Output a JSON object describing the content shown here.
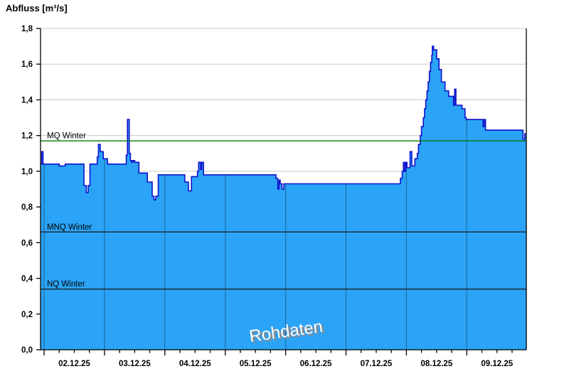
{
  "title": "Abfluss [m³/s]",
  "watermark": "Rohdaten",
  "colors": {
    "area_fill": "#2ba3f7",
    "area_stroke": "#0f12cc",
    "day_grid_on_area": "#1e6fa8",
    "horizontal_grid": "#c9c9c9",
    "axis_line": "#000000",
    "mq_line": "#007b00",
    "mnq_nq_line": "#1a1a1a",
    "tick_label": "#000000",
    "watermark_fill": "#ffffff",
    "watermark_shadow": "#8a8a8a"
  },
  "chart_data": {
    "type": "area",
    "title": "Abfluss [m³/s]",
    "ylabel": "Abfluss [m³/s]",
    "xlabel": "",
    "ylim": [
      0,
      1.8
    ],
    "ytick_step": 0.2,
    "y_tick_labels": [
      "0,0",
      "0,2",
      "0,4",
      "0,6",
      "0,8",
      "1,0",
      "1,2",
      "1,4",
      "1,6",
      "1,8"
    ],
    "x_tick_labels": [
      "02.12.25",
      "03.12.25",
      "04.12.25",
      "05.12.25",
      "06.12.25",
      "07.12.25",
      "08.12.25",
      "09.12.25"
    ],
    "x_minor_tick_days": 0.25,
    "x_visible_day_range": [
      -0.059,
      7.986
    ],
    "grid": true,
    "legend": false,
    "watermark": "Rohdaten",
    "reference_lines": [
      {
        "label": "MQ Winter",
        "value": 1.17,
        "color": "#007b00"
      },
      {
        "label": "MNQ Winter",
        "value": 0.66,
        "color": "#1a1a1a"
      },
      {
        "label": "NQ Winter",
        "value": 0.34,
        "color": "#1a1a1a"
      }
    ],
    "series": [
      {
        "name": "Abfluss Rohdaten",
        "unit": "m³/s",
        "step_mode": "step-after",
        "points_day_value": [
          [
            -0.059,
            1.04
          ],
          [
            -0.04,
            1.11
          ],
          [
            -0.018,
            1.04
          ],
          [
            0.25,
            1.03
          ],
          [
            0.35,
            1.04
          ],
          [
            0.66,
            0.92
          ],
          [
            0.7,
            0.88
          ],
          [
            0.73,
            0.92
          ],
          [
            0.76,
            1.04
          ],
          [
            0.88,
            1.08
          ],
          [
            0.9,
            1.15
          ],
          [
            0.93,
            1.11
          ],
          [
            0.98,
            1.07
          ],
          [
            1.05,
            1.04
          ],
          [
            1.36,
            1.09
          ],
          [
            1.38,
            1.29
          ],
          [
            1.41,
            1.1
          ],
          [
            1.43,
            1.06
          ],
          [
            1.45,
            1.05
          ],
          [
            1.47,
            1.06
          ],
          [
            1.5,
            1.05
          ],
          [
            1.57,
            0.99
          ],
          [
            1.71,
            0.94
          ],
          [
            1.79,
            0.86
          ],
          [
            1.82,
            0.84
          ],
          [
            1.85,
            0.86
          ],
          [
            1.89,
            0.98
          ],
          [
            2.33,
            0.94
          ],
          [
            2.39,
            0.89
          ],
          [
            2.44,
            0.97
          ],
          [
            2.54,
            1.0
          ],
          [
            2.56,
            1.05
          ],
          [
            2.59,
            1.01
          ],
          [
            2.61,
            1.05
          ],
          [
            2.64,
            0.98
          ],
          [
            3.84,
            0.96
          ],
          [
            3.87,
            0.9
          ],
          [
            3.89,
            0.95
          ],
          [
            3.91,
            0.93
          ],
          [
            3.94,
            0.9
          ],
          [
            3.97,
            0.93
          ],
          [
            5.9,
            0.96
          ],
          [
            5.93,
            1.0
          ],
          [
            5.95,
            1.05
          ],
          [
            5.97,
            1.0
          ],
          [
            5.99,
            1.05
          ],
          [
            6.01,
            1.02
          ],
          [
            6.06,
            1.11
          ],
          [
            6.09,
            1.03
          ],
          [
            6.14,
            1.07
          ],
          [
            6.18,
            1.1
          ],
          [
            6.2,
            1.15
          ],
          [
            6.23,
            1.2
          ],
          [
            6.25,
            1.25
          ],
          [
            6.28,
            1.3
          ],
          [
            6.3,
            1.35
          ],
          [
            6.32,
            1.4
          ],
          [
            6.34,
            1.45
          ],
          [
            6.36,
            1.5
          ],
          [
            6.38,
            1.56
          ],
          [
            6.4,
            1.61
          ],
          [
            6.42,
            1.65
          ],
          [
            6.43,
            1.7
          ],
          [
            6.45,
            1.68
          ],
          [
            6.5,
            1.63
          ],
          [
            6.54,
            1.57
          ],
          [
            6.58,
            1.5
          ],
          [
            6.64,
            1.45
          ],
          [
            6.7,
            1.42
          ],
          [
            6.78,
            1.37
          ],
          [
            6.8,
            1.46
          ],
          [
            6.82,
            1.37
          ],
          [
            6.92,
            1.35
          ],
          [
            6.97,
            1.3
          ],
          [
            6.99,
            1.29
          ],
          [
            7.27,
            1.25
          ],
          [
            7.29,
            1.29
          ],
          [
            7.31,
            1.23
          ],
          [
            7.93,
            1.18
          ],
          [
            7.96,
            1.21
          ]
        ]
      }
    ]
  }
}
